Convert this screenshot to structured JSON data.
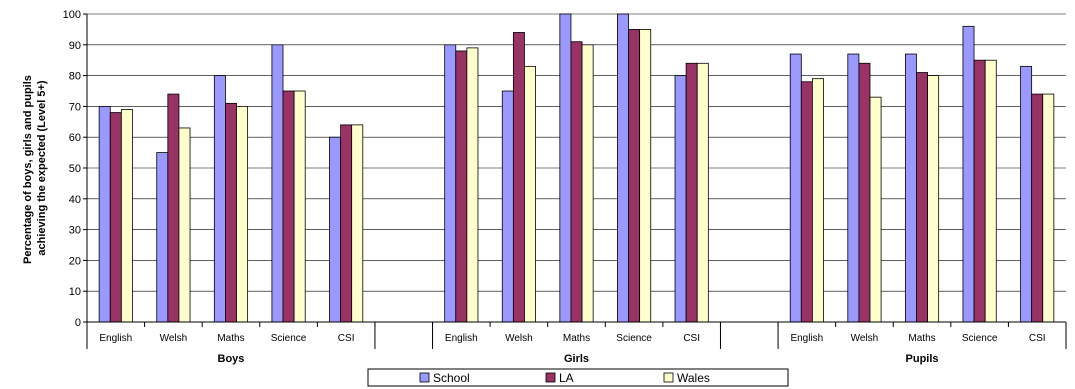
{
  "chart_data": {
    "type": "bar",
    "ylabel": "Percentage of boys, girls and pupils achieving the expected (Level 5+)",
    "ylim": [
      0,
      100
    ],
    "yticks": [
      0,
      10,
      20,
      30,
      40,
      50,
      60,
      70,
      80,
      90,
      100
    ],
    "grid": true,
    "legend_position": "bottom",
    "groups": [
      "Boys",
      "Girls",
      "Pupils"
    ],
    "subcategories": [
      "English",
      "Welsh",
      "Maths",
      "Science",
      "CSI"
    ],
    "series": [
      {
        "name": "School",
        "color": "#9999ff",
        "values": [
          [
            70,
            55,
            80,
            90,
            60
          ],
          [
            90,
            75,
            100,
            100,
            80
          ],
          [
            87,
            87,
            87,
            96,
            83
          ]
        ]
      },
      {
        "name": "LA",
        "color": "#993366",
        "values": [
          [
            68,
            74,
            71,
            75,
            64
          ],
          [
            88,
            94,
            91,
            95,
            84
          ],
          [
            78,
            84,
            81,
            85,
            74
          ]
        ]
      },
      {
        "name": "Wales",
        "color": "#ffffcc",
        "values": [
          [
            69,
            63,
            70,
            75,
            64
          ],
          [
            89,
            83,
            90,
            95,
            84
          ],
          [
            79,
            73,
            80,
            85,
            74
          ]
        ]
      }
    ]
  }
}
